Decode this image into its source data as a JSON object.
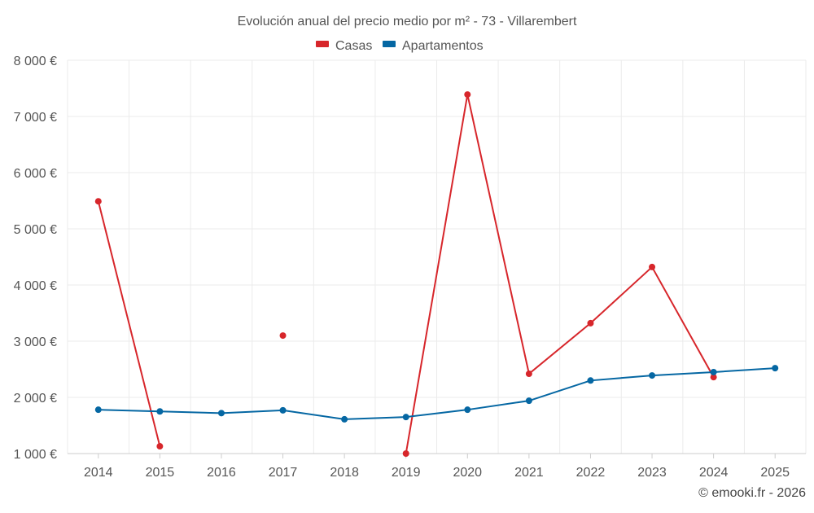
{
  "chart_data": {
    "type": "line",
    "title": "Evolución anual del precio medio por m² - 73 - Villarembert",
    "xlabel": "",
    "ylabel": "",
    "categories": [
      "2014",
      "2015",
      "2016",
      "2017",
      "2018",
      "2019",
      "2020",
      "2021",
      "2022",
      "2023",
      "2024",
      "2025"
    ],
    "ylim": [
      1000,
      8000
    ],
    "yticks": [
      1000,
      2000,
      3000,
      4000,
      5000,
      6000,
      7000,
      8000
    ],
    "ytick_labels": [
      "1 000 €",
      "2 000 €",
      "3 000 €",
      "4 000 €",
      "5 000 €",
      "6 000 €",
      "7 000 €",
      "8 000 €"
    ],
    "grid": true,
    "legend_position": "top-center",
    "series": [
      {
        "name": "Casas",
        "color": "#d7262b",
        "values": [
          5490,
          1130,
          null,
          3100,
          null,
          1000,
          7390,
          2420,
          3320,
          4320,
          2360,
          null
        ]
      },
      {
        "name": "Apartamentos",
        "color": "#0567a3",
        "values": [
          1780,
          1750,
          1720,
          1770,
          1610,
          1650,
          1780,
          1940,
          2300,
          2390,
          2450,
          2520
        ]
      }
    ],
    "credit": "© emooki.fr - 2026"
  }
}
